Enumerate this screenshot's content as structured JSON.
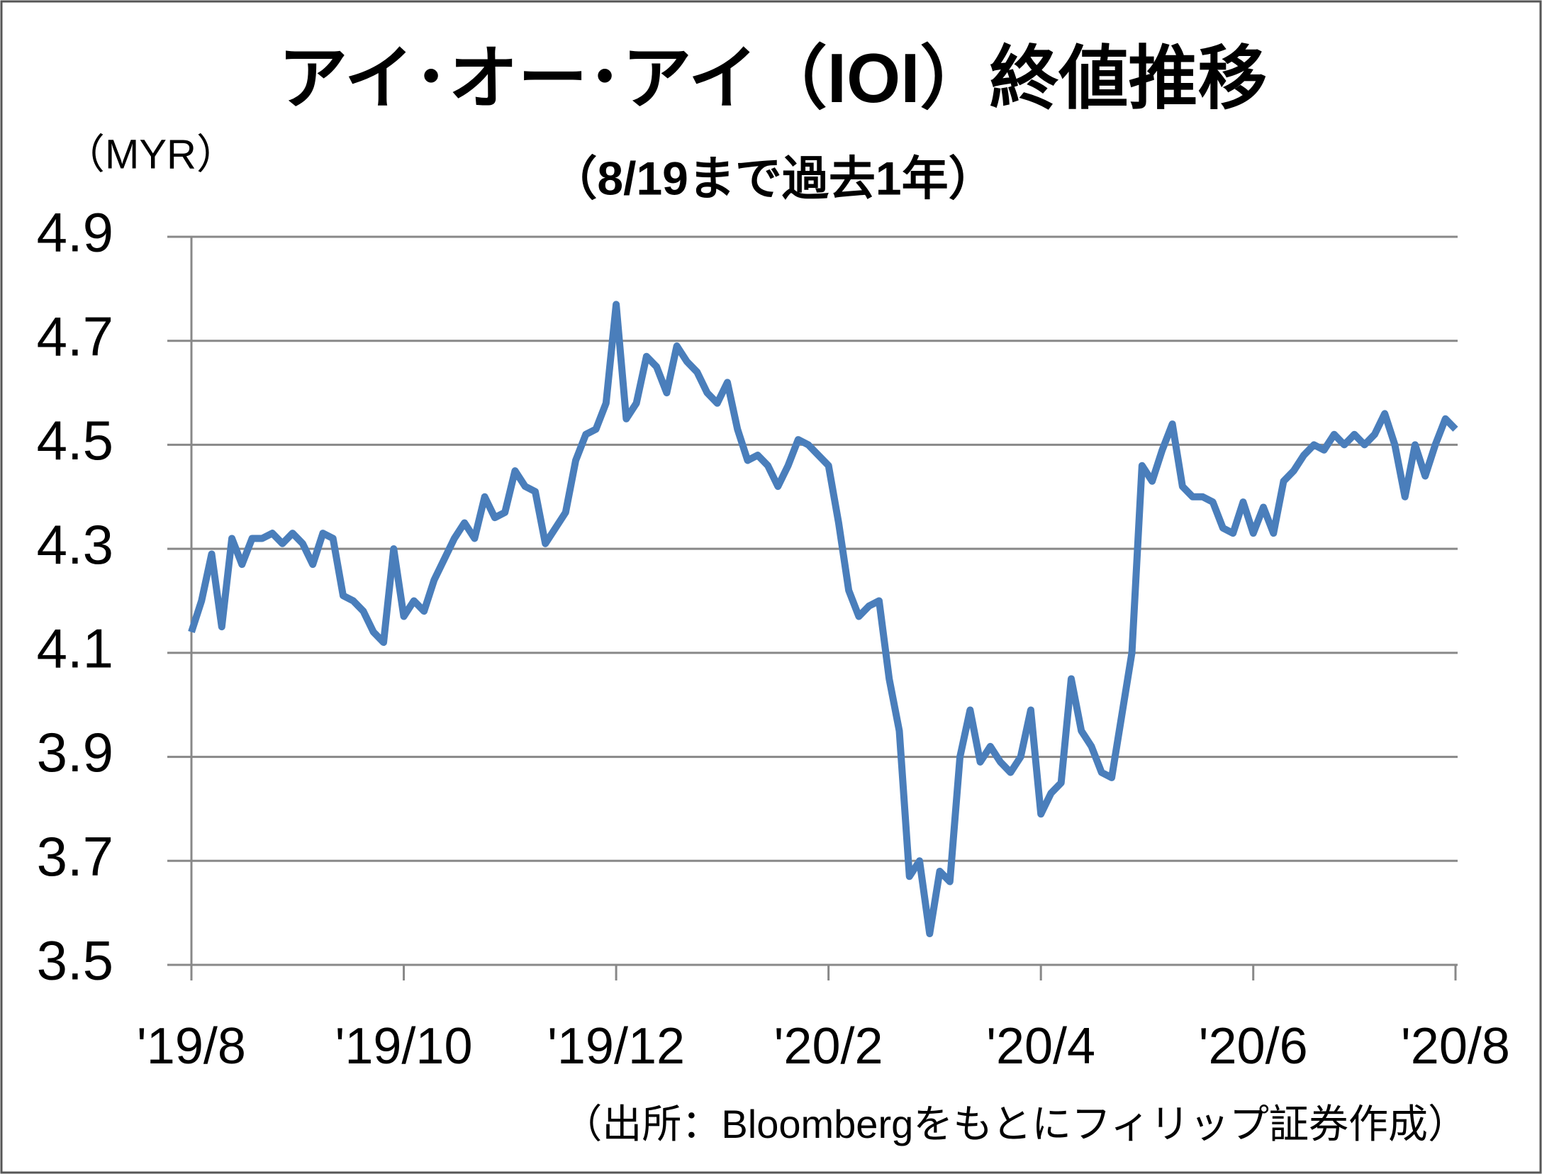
{
  "chart_data": {
    "type": "line",
    "title": "アイ･オー･アイ（IOI）終値推移",
    "subtitle": "（8/19まで過去1年）",
    "y_label": "（MYR）",
    "source": "（出所：Bloombergをもとにフィリップ証券作成）",
    "xlim": [
      0,
      125
    ],
    "xticks": [
      {
        "value": 0,
        "label": "'19/8"
      },
      {
        "value": 21,
        "label": "'19/10"
      },
      {
        "value": 42,
        "label": "'19/12"
      },
      {
        "value": 63,
        "label": "'20/2"
      },
      {
        "value": 84,
        "label": "'20/4"
      },
      {
        "value": 105,
        "label": "'20/6"
      },
      {
        "value": 125,
        "label": "'20/8"
      }
    ],
    "ylim": [
      3.5,
      4.9
    ],
    "yticks": [
      3.5,
      3.7,
      3.9,
      4.1,
      4.3,
      4.5,
      4.7,
      4.9
    ],
    "grid": true,
    "series": [
      {
        "color": "#4a7ebb",
        "values": [
          4.14,
          4.2,
          4.29,
          4.15,
          4.32,
          4.27,
          4.32,
          4.32,
          4.33,
          4.31,
          4.33,
          4.31,
          4.27,
          4.33,
          4.32,
          4.21,
          4.2,
          4.18,
          4.14,
          4.12,
          4.3,
          4.17,
          4.2,
          4.18,
          4.24,
          4.28,
          4.32,
          4.35,
          4.32,
          4.4,
          4.36,
          4.37,
          4.45,
          4.42,
          4.41,
          4.31,
          4.34,
          4.37,
          4.47,
          4.52,
          4.53,
          4.58,
          4.77,
          4.55,
          4.58,
          4.67,
          4.65,
          4.6,
          4.69,
          4.66,
          4.64,
          4.6,
          4.58,
          4.62,
          4.53,
          4.47,
          4.48,
          4.46,
          4.42,
          4.46,
          4.51,
          4.5,
          4.48,
          4.46,
          4.35,
          4.22,
          4.17,
          4.19,
          4.2,
          4.05,
          3.95,
          3.67,
          3.7,
          3.56,
          3.68,
          3.66,
          3.9,
          3.99,
          3.89,
          3.92,
          3.89,
          3.87,
          3.9,
          3.99,
          3.79,
          3.83,
          3.85,
          4.05,
          3.95,
          3.92,
          3.87,
          3.86,
          3.98,
          4.1,
          4.46,
          4.43,
          4.49,
          4.54,
          4.42,
          4.4,
          4.4,
          4.39,
          4.34,
          4.33,
          4.39,
          4.33,
          4.38,
          4.33,
          4.43,
          4.45,
          4.48,
          4.5,
          4.49,
          4.52,
          4.5,
          4.52,
          4.5,
          4.52,
          4.56,
          4.5,
          4.4,
          4.5,
          4.44,
          4.5,
          4.55,
          4.53
        ]
      }
    ]
  }
}
